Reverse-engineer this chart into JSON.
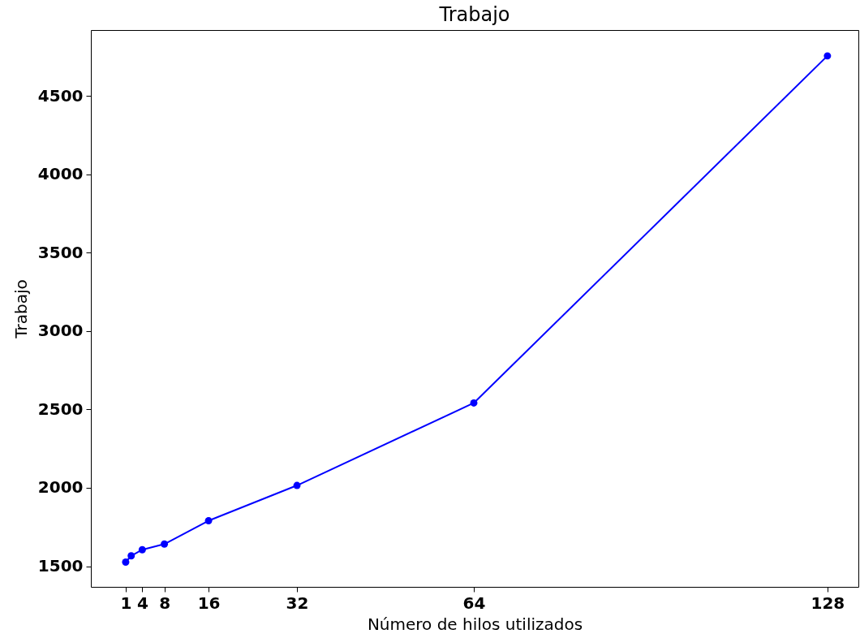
{
  "chart_data": {
    "type": "line",
    "title": "Trabajo",
    "xlabel": "Número de hilos utilizados",
    "ylabel": "Trabajo",
    "x": [
      1,
      2,
      4,
      8,
      16,
      32,
      64,
      128
    ],
    "series": [
      {
        "color": "#0000ff",
        "values": [
          1526,
          1566,
          1605,
          1641,
          1790,
          2015,
          2541,
          4755
        ]
      }
    ],
    "xlim": [
      -5.3,
      133.6
    ],
    "ylim": [
      1368,
      4920
    ],
    "xticks": [
      1,
      4,
      8,
      16,
      32,
      64,
      128
    ],
    "yticks": [
      1500,
      2000,
      2500,
      3000,
      3500,
      4000,
      4500
    ],
    "grid": false,
    "marker": "circle",
    "line_style": "solid"
  }
}
